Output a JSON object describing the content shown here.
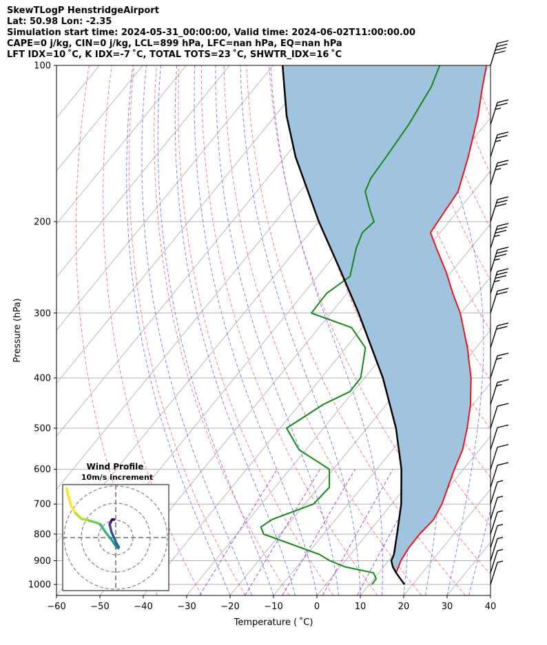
{
  "header": {
    "title": "SkewTLogP HenstridgeAirport",
    "location": "Lat: 50.98   Lon: -2.35",
    "times": "Simulation start time: 2024-05-31_00:00:00, Valid time: 2024-06-02T11:00:00.00",
    "indices1": "CAPE=0 j/kg, CIN=0 j/kg, LCL=899 hPa, LFC=nan hPa, EQ=nan hPa",
    "indices2": "LFT IDX=10 ˚C, K IDX=-7 ˚C, TOTAL TOTS=23 ˚C, SHWTR_IDX=16 ˚C"
  },
  "chart_data": {
    "type": "line",
    "subtype": "skew-t log-p",
    "xlabel": "Temperature ( ˚C)",
    "ylabel": "Pressure (hPa)",
    "xlim": [
      -60,
      40
    ],
    "ylim_hpa": [
      1050,
      100
    ],
    "x_ticks": [
      -60,
      -50,
      -40,
      -30,
      -20,
      -10,
      0,
      10,
      20,
      30,
      40
    ],
    "x_tick_labels": [
      "−60",
      "−50",
      "−40",
      "−30",
      "−20",
      "−10",
      "0",
      "10",
      "20",
      "30",
      "40"
    ],
    "y_ticks": [
      1000,
      900,
      800,
      700,
      600,
      500,
      400,
      300,
      200,
      100
    ],
    "y_scale": "log",
    "grid": true,
    "colors": {
      "temperature": "#ee1111",
      "dewpoint": "#118811",
      "parcel": "#000000",
      "cape_shading": "#a0c4e0",
      "dry_adiabats": "#ff6666",
      "moist_adiabats": "#6b74f2",
      "mixing_ratio": "#9a2fcf",
      "isotherms": "#b0b0b0"
    },
    "series": [
      {
        "name": "Temperature",
        "points": [
          [
            1000,
            18.1
          ],
          [
            950,
            14.0
          ],
          [
            900,
            12.8
          ],
          [
            850,
            12.2
          ],
          [
            800,
            12.1
          ],
          [
            750,
            12.6
          ],
          [
            700,
            11.6
          ],
          [
            650,
            9.8
          ],
          [
            600,
            7.9
          ],
          [
            550,
            6.1
          ],
          [
            500,
            3.1
          ],
          [
            450,
            -0.6
          ],
          [
            400,
            -5.5
          ],
          [
            350,
            -12.0
          ],
          [
            300,
            -20.2
          ],
          [
            275,
            -25.6
          ],
          [
            250,
            -31.2
          ],
          [
            225,
            -37.9
          ],
          [
            210,
            -42.2
          ],
          [
            200,
            -42.6
          ],
          [
            175,
            -43.6
          ],
          [
            150,
            -47.8
          ],
          [
            125,
            -53.3
          ],
          [
            110,
            -57.7
          ],
          [
            100,
            -60.8
          ]
        ]
      },
      {
        "name": "Dewpoint",
        "points": [
          [
            1000,
            10.6
          ],
          [
            975,
            10.5
          ],
          [
            950,
            8.8
          ],
          [
            925,
            1.1
          ],
          [
            900,
            -3.6
          ],
          [
            875,
            -7.2
          ],
          [
            800,
            -23.8
          ],
          [
            775,
            -25.8
          ],
          [
            750,
            -24.7
          ],
          [
            700,
            -18.0
          ],
          [
            650,
            -17.5
          ],
          [
            600,
            -20.9
          ],
          [
            550,
            -31.6
          ],
          [
            500,
            -38.5
          ],
          [
            450,
            -34.5
          ],
          [
            425,
            -30.8
          ],
          [
            400,
            -30.9
          ],
          [
            350,
            -35.5
          ],
          [
            320,
            -42.5
          ],
          [
            300,
            -54.5
          ],
          [
            275,
            -54.7
          ],
          [
            255,
            -52.5
          ],
          [
            225,
            -56.4
          ],
          [
            210,
            -57.9
          ],
          [
            200,
            -57.3
          ],
          [
            190,
            -60.4
          ],
          [
            175,
            -65.0
          ],
          [
            165,
            -66.2
          ],
          [
            150,
            -66.7
          ],
          [
            130,
            -67.6
          ],
          [
            110,
            -69.5
          ],
          [
            100,
            -71.6
          ]
        ]
      },
      {
        "name": "Parcel",
        "points": [
          [
            1000,
            18.1
          ],
          [
            950,
            14.0
          ],
          [
            925,
            12.1
          ],
          [
            900,
            10.6
          ],
          [
            875,
            10.0
          ],
          [
            850,
            9.0
          ],
          [
            800,
            6.9
          ],
          [
            700,
            2.2
          ],
          [
            600,
            -4.3
          ],
          [
            500,
            -13.3
          ],
          [
            400,
            -25.8
          ],
          [
            300,
            -43.6
          ],
          [
            250,
            -55.4
          ],
          [
            200,
            -70.0
          ],
          [
            150,
            -87.6
          ],
          [
            125,
            -97.4
          ],
          [
            100,
            -107.8
          ]
        ]
      }
    ],
    "wind_barbs": [
      {
        "p": 100,
        "barb": "50+"
      },
      {
        "p": 130,
        "barb": "25"
      },
      {
        "p": 150,
        "barb": "25"
      },
      {
        "p": 170,
        "barb": "25"
      },
      {
        "p": 200,
        "barb": "30"
      },
      {
        "p": 225,
        "barb": "35"
      },
      {
        "p": 250,
        "barb": "35"
      },
      {
        "p": 275,
        "barb": "35"
      },
      {
        "p": 300,
        "barb": "20"
      },
      {
        "p": 350,
        "barb": "20"
      },
      {
        "p": 400,
        "barb": "15"
      },
      {
        "p": 450,
        "barb": "15"
      },
      {
        "p": 500,
        "barb": "10"
      },
      {
        "p": 550,
        "barb": "10"
      },
      {
        "p": 600,
        "barb": "10"
      },
      {
        "p": 650,
        "barb": "10"
      },
      {
        "p": 700,
        "barb": "5"
      },
      {
        "p": 750,
        "barb": "5"
      },
      {
        "p": 800,
        "barb": "5"
      },
      {
        "p": 850,
        "barb": "5"
      },
      {
        "p": 900,
        "barb": "5"
      },
      {
        "p": 950,
        "barb": "5"
      },
      {
        "p": 1000,
        "barb": "5"
      }
    ],
    "hodograph": {
      "title": "Wind Profile",
      "subtitle": "10m/s increment",
      "ring_increment": 10,
      "rings": 3,
      "colormap": "viridis",
      "points_ms": [
        [
          -28.5,
          -13.0
        ],
        [
          -27.5,
          -11.0
        ],
        [
          -26.0,
          -8.5
        ],
        [
          -23.5,
          -6.5
        ],
        [
          -20.0,
          -5.0
        ],
        [
          -15.5,
          -4.5
        ],
        [
          -11.5,
          -4.0
        ],
        [
          -9.0,
          -3.5
        ],
        [
          -6.0,
          -1.5
        ],
        [
          -3.5,
          0.0
        ],
        [
          -2.5,
          0.5
        ],
        [
          -1.0,
          1.5
        ],
        [
          0.5,
          2.5
        ],
        [
          1.5,
          2.8
        ],
        [
          1.8,
          2.5
        ],
        [
          0.5,
          1.5
        ],
        [
          -1.0,
          0.0
        ],
        [
          -2.5,
          -1.5
        ],
        [
          -3.5,
          -3.5
        ],
        [
          -3.0,
          -4.0
        ],
        [
          -2.5,
          -4.5
        ],
        [
          -2.0,
          -4.8
        ],
        [
          -1.0,
          -4.8
        ]
      ]
    }
  }
}
